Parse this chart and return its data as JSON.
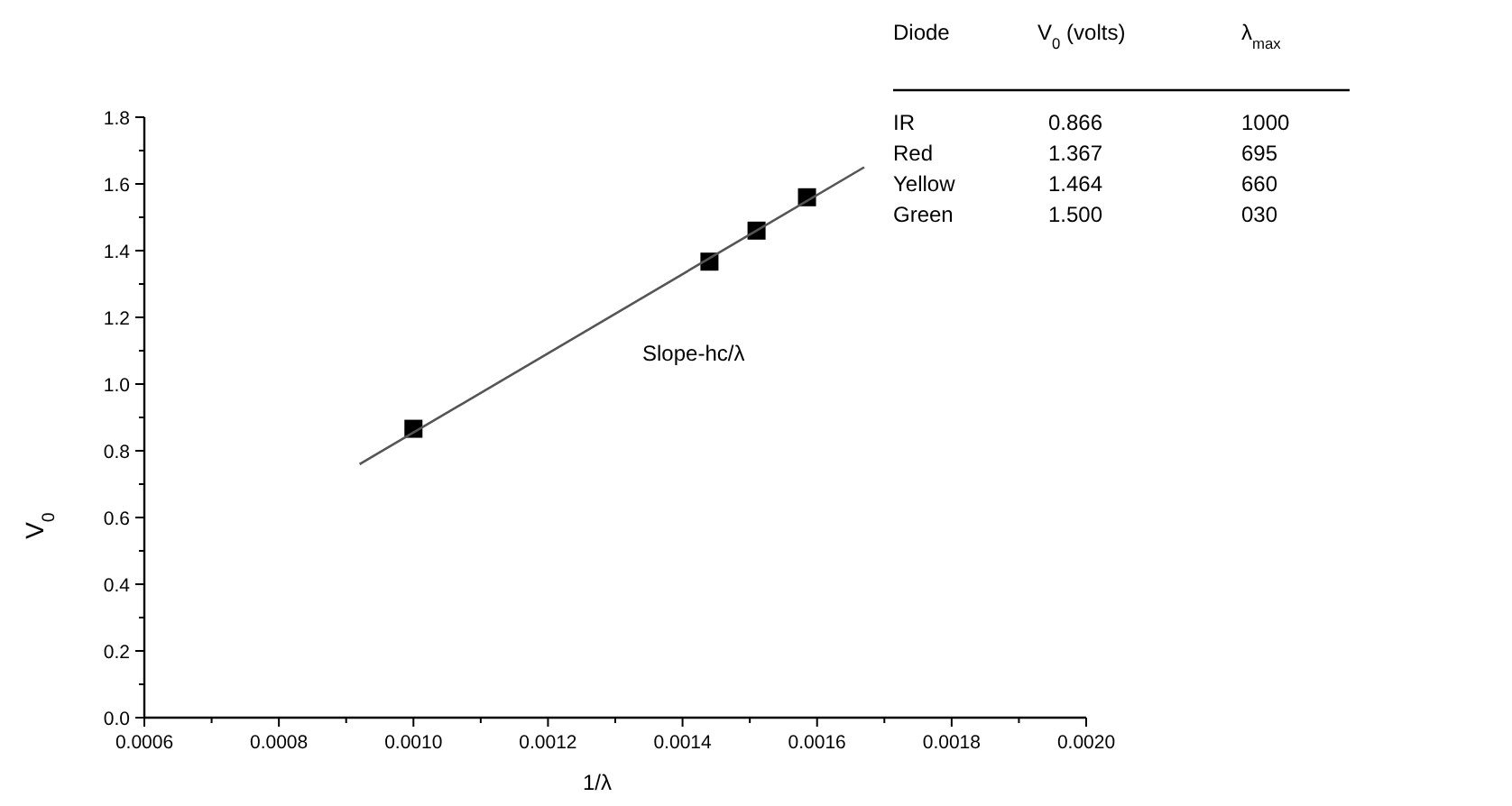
{
  "chart_data": {
    "type": "scatter",
    "xlabel": "1/λ",
    "ylabel": "V$_{0}$",
    "xlim": [
      0.0006,
      0.002
    ],
    "ylim": [
      0,
      1.8
    ],
    "xticks": [
      0.0006,
      {
        "value": 0.0007,
        "label": null
      },
      0.0008,
      {
        "value": 0.0009,
        "label": null
      },
      {
        "value": 0.001,
        "label": "0.0010"
      },
      {
        "value": 0.0011,
        "label": null
      },
      0.0012,
      {
        "value": 0.0013,
        "label": null
      },
      0.0014,
      {
        "value": 0.0015,
        "label": null
      },
      0.0016,
      {
        "value": 0.0017,
        "label": null
      },
      0.0018,
      {
        "value": 0.0019,
        "label": null
      },
      {
        "value": 0.002,
        "label": "0.0020"
      }
    ],
    "yticks": [
      {
        "value": 0,
        "label": "0.0"
      },
      {
        "value": 0.1,
        "label": null
      },
      0.2,
      {
        "value": 0.3,
        "label": null
      },
      0.4,
      {
        "value": 0.5,
        "label": null
      },
      0.6,
      {
        "value": 0.7,
        "label": null
      },
      0.8,
      {
        "value": 0.9,
        "label": null
      },
      {
        "value": 1,
        "label": "1.0"
      },
      {
        "value": 1.1,
        "label": null
      },
      1.2,
      {
        "value": 1.3,
        "label": null
      },
      1.4,
      {
        "value": 1.5,
        "label": null
      },
      1.6,
      {
        "value": 1.7,
        "label": null
      },
      1.8
    ],
    "grid": false,
    "series": [
      {
        "color": "#000000",
        "marker": "square",
        "x": [
          0.001,
          0.00144,
          0.00151,
          0.001585
        ],
        "values": [
          0.866,
          1.367,
          1.46,
          1.56
        ]
      },
      {
        "type": "line",
        "color": "#555555",
        "marker": "none",
        "line_style": "solid",
        "x": [
          0.00092,
          0.00167
        ],
        "values": [
          0.76,
          1.65
        ]
      }
    ],
    "annotations": [
      "Slope-hc/λ",
      "Diode",
      "V$_{0}$ (volts)",
      "λ$_{max}$",
      "IR",
      "0.866",
      "1000",
      "Red",
      "1.367",
      "695",
      "Yellow",
      "1.464",
      "660",
      "Green",
      "1.500",
      "030"
    ]
  }
}
